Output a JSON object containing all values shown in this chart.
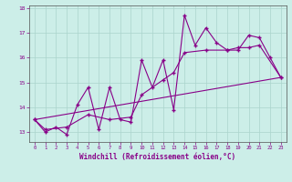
{
  "xlabel": "Windchill (Refroidissement éolien,°C)",
  "background_color": "#cceee8",
  "grid_color": "#aad4cc",
  "line_color": "#880088",
  "xlim": [
    -0.5,
    23.5
  ],
  "ylim": [
    12.6,
    18.1
  ],
  "yticks": [
    13,
    14,
    15,
    16,
    17,
    18
  ],
  "xticks": [
    0,
    1,
    2,
    3,
    4,
    5,
    6,
    7,
    8,
    9,
    10,
    11,
    12,
    13,
    14,
    15,
    16,
    17,
    18,
    19,
    20,
    21,
    22,
    23
  ],
  "line1_x": [
    0,
    1,
    2,
    3,
    4,
    5,
    6,
    7,
    8,
    9,
    10,
    11,
    12,
    13,
    14,
    15,
    16,
    17,
    18,
    19,
    20,
    21,
    22,
    23
  ],
  "line1_y": [
    13.5,
    13.0,
    13.2,
    12.9,
    14.1,
    14.8,
    13.1,
    14.8,
    13.5,
    13.4,
    15.9,
    14.8,
    15.9,
    13.9,
    17.7,
    16.5,
    17.2,
    16.6,
    16.3,
    16.3,
    16.9,
    16.8,
    16.0,
    15.2
  ],
  "line2_x": [
    0,
    23
  ],
  "line2_y": [
    13.5,
    15.2
  ],
  "line3_x": [
    0,
    1,
    3,
    5,
    7,
    9,
    10,
    12,
    13,
    14,
    16,
    18,
    19,
    20,
    21,
    23
  ],
  "line3_y": [
    13.5,
    13.1,
    13.2,
    13.7,
    13.5,
    13.6,
    14.5,
    15.1,
    15.4,
    16.2,
    16.3,
    16.3,
    16.4,
    16.4,
    16.5,
    15.2
  ]
}
